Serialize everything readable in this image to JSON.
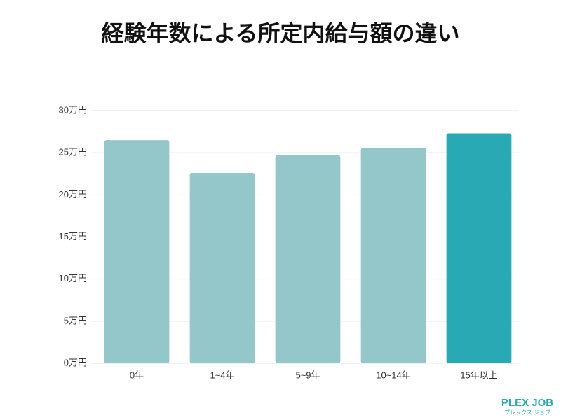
{
  "chart_data": {
    "type": "bar",
    "title": "経験年数による所定内給与額の違い",
    "categories": [
      "0年",
      "1~4年",
      "5~9年",
      "10~14年",
      "15年以上"
    ],
    "values": [
      26.5,
      22.6,
      24.7,
      25.6,
      27.3
    ],
    "colors": [
      "#93c7ca",
      "#93c7ca",
      "#93c7ca",
      "#93c7ca",
      "#29a9b3"
    ],
    "ylim": [
      0,
      30
    ],
    "yticks": [
      {
        "value": 0,
        "label": "0万円"
      },
      {
        "value": 5,
        "label": "5万円"
      },
      {
        "value": 10,
        "label": "10万円"
      },
      {
        "value": 15,
        "label": "15万円"
      },
      {
        "value": 20,
        "label": "20万円"
      },
      {
        "value": 25,
        "label": "25万円"
      },
      {
        "value": 30,
        "label": "30万円"
      }
    ],
    "grid": true
  },
  "logo": {
    "name": "PLEX JOB",
    "sub": "プレックス ジョブ"
  }
}
